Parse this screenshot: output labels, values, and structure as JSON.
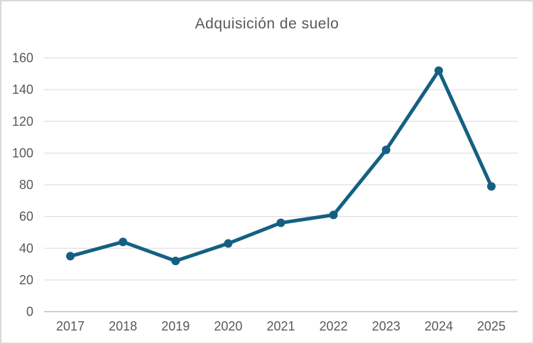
{
  "chart_data": {
    "type": "line",
    "title": "Adquisición de suelo",
    "categories": [
      "2017",
      "2018",
      "2019",
      "2020",
      "2021",
      "2022",
      "2023",
      "2024",
      "2025"
    ],
    "values": [
      35,
      44,
      32,
      43,
      56,
      61,
      102,
      152,
      79
    ],
    "xlabel": "",
    "ylabel": "",
    "ylim": [
      0,
      160
    ],
    "ytick_step": 20,
    "yticks": [
      0,
      20,
      40,
      60,
      80,
      100,
      120,
      140,
      160
    ],
    "grid": "horizontal",
    "legend": "none",
    "marker": "circle",
    "colors": {
      "series": "#156082",
      "gridline": "#D9D9D9",
      "axis_line": "#BFBFBF",
      "tick_label": "#595959",
      "title": "#595959",
      "background": "#FFFFFF",
      "border": "#D9D9D9"
    }
  }
}
